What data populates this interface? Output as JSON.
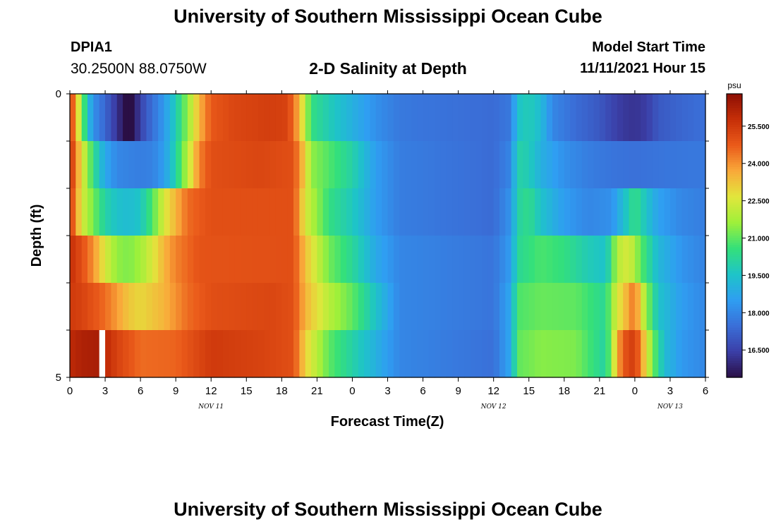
{
  "header": {
    "title": "University of Southern Mississippi Ocean Cube",
    "station_id": "DPIA1",
    "station_coords": "30.2500N  88.0750W",
    "chart_title": "2-D Salinity at Depth",
    "model_start_label": "Model Start Time",
    "model_start_value": "11/11/2021 Hour 15"
  },
  "footer": {
    "title": "University of Southern Mississippi Ocean Cube"
  },
  "chart_data": {
    "type": "heatmap",
    "title": "2-D Salinity at Depth",
    "xlabel": "Forecast Time(Z)",
    "ylabel": "Depth (ft)",
    "x_hours_range": [
      0,
      54
    ],
    "x_ticks": [
      "0",
      "3",
      "6",
      "9",
      "12",
      "15",
      "18",
      "21",
      "0",
      "3",
      "6",
      "9",
      "12",
      "15",
      "18",
      "21",
      "0",
      "3",
      "6"
    ],
    "day_labels": [
      "NOV 11",
      "NOV 12",
      "NOV 13"
    ],
    "y_ticks": [
      "0",
      "5"
    ],
    "ylim": [
      0,
      5
    ],
    "colorbar_unit": "psu",
    "colorbar_ticks": [
      "25.500",
      "24.000",
      "22.500",
      "21.000",
      "19.500",
      "18.000",
      "16.500"
    ],
    "colorbar_range": [
      15.4,
      26.8
    ],
    "colors": [
      "#2a0f45",
      "#3b3fa8",
      "#3a6fd8",
      "#2f9ef2",
      "#1ec4c8",
      "#34e07a",
      "#9ef03a",
      "#e2e63c",
      "#f9a93a",
      "#ea5a1a",
      "#c62f08",
      "#8c0f04"
    ],
    "layers": [
      {
        "depth": 0,
        "knots": [
          [
            0,
            25.8
          ],
          [
            0.5,
            23.5
          ],
          [
            1,
            21.6
          ],
          [
            1.5,
            19.5
          ],
          [
            2,
            18.2
          ],
          [
            3,
            17.3
          ],
          [
            4,
            16.2
          ],
          [
            4.8,
            15.3
          ],
          [
            5.3,
            15.3
          ],
          [
            6,
            16.5
          ],
          [
            7,
            17.5
          ],
          [
            8,
            18.4
          ],
          [
            9,
            19.8
          ],
          [
            10,
            21.5
          ],
          [
            11,
            23.5
          ],
          [
            12,
            24.8
          ],
          [
            14,
            25.2
          ],
          [
            17,
            25.4
          ],
          [
            18.5,
            25.3
          ],
          [
            19.5,
            23.5
          ],
          [
            20,
            22.0
          ],
          [
            20.5,
            20.5
          ],
          [
            22,
            19.8
          ],
          [
            24,
            19.0
          ],
          [
            26,
            18.2
          ],
          [
            28,
            17.7
          ],
          [
            30,
            17.6
          ],
          [
            36,
            17.4
          ],
          [
            37.5,
            17.7
          ],
          [
            38,
            19.5
          ],
          [
            39,
            19.8
          ],
          [
            40,
            19.3
          ],
          [
            41,
            18.0
          ],
          [
            43,
            17.4
          ],
          [
            45,
            17.0
          ],
          [
            46,
            16.6
          ],
          [
            47,
            16.3
          ],
          [
            48,
            16.2
          ],
          [
            49,
            16.4
          ],
          [
            50,
            17.0
          ],
          [
            52,
            17.3
          ],
          [
            54,
            17.5
          ]
        ]
      },
      {
        "depth": 1,
        "knots": [
          [
            0,
            26.0
          ],
          [
            0.5,
            24.2
          ],
          [
            1,
            22.8
          ],
          [
            1.5,
            21.5
          ],
          [
            2,
            20.5
          ],
          [
            2.5,
            19.5
          ],
          [
            3,
            18.8
          ],
          [
            4,
            18.0
          ],
          [
            6,
            17.8
          ],
          [
            7,
            17.9
          ],
          [
            8,
            18.5
          ],
          [
            9,
            20.0
          ],
          [
            10,
            22.0
          ],
          [
            11,
            24.2
          ],
          [
            12,
            25.0
          ],
          [
            16,
            25.2
          ],
          [
            19,
            25.0
          ],
          [
            20,
            23.0
          ],
          [
            20.5,
            21.5
          ],
          [
            24,
            20.0
          ],
          [
            26,
            18.5
          ],
          [
            28,
            17.8
          ],
          [
            34,
            17.5
          ],
          [
            36,
            17.4
          ],
          [
            37.5,
            18.0
          ],
          [
            38,
            20.0
          ],
          [
            39,
            19.8
          ],
          [
            40,
            19.0
          ],
          [
            42,
            18.2
          ],
          [
            44,
            17.8
          ],
          [
            46,
            17.6
          ],
          [
            48,
            17.5
          ],
          [
            50,
            17.6
          ],
          [
            54,
            17.7
          ]
        ]
      },
      {
        "depth": 2,
        "knots": [
          [
            0,
            25.6
          ],
          [
            0.5,
            24.0
          ],
          [
            1,
            22.5
          ],
          [
            2,
            21.2
          ],
          [
            3,
            20.0
          ],
          [
            4,
            19.5
          ],
          [
            5,
            19.3
          ],
          [
            6,
            19.6
          ],
          [
            7,
            20.8
          ],
          [
            8,
            22.5
          ],
          [
            9,
            23.5
          ],
          [
            10,
            24.5
          ],
          [
            12,
            25.0
          ],
          [
            19,
            25.0
          ],
          [
            20,
            22.5
          ],
          [
            22,
            20.5
          ],
          [
            24,
            19.7
          ],
          [
            26,
            18.5
          ],
          [
            28,
            17.8
          ],
          [
            36,
            17.4
          ],
          [
            37.5,
            18.3
          ],
          [
            38,
            20.0
          ],
          [
            39,
            20.4
          ],
          [
            40,
            19.5
          ],
          [
            42,
            18.5
          ],
          [
            44,
            18.0
          ],
          [
            46,
            18.2
          ],
          [
            47,
            19.3
          ],
          [
            48,
            20.5
          ],
          [
            49,
            19.5
          ],
          [
            50,
            18.6
          ],
          [
            52,
            18.0
          ],
          [
            54,
            17.8
          ]
        ]
      },
      {
        "depth": 3,
        "knots": [
          [
            0,
            25.8
          ],
          [
            1,
            25.0
          ],
          [
            2,
            24.0
          ],
          [
            3,
            22.5
          ],
          [
            4,
            21.5
          ],
          [
            5,
            21.3
          ],
          [
            6,
            21.7
          ],
          [
            7,
            22.5
          ],
          [
            8,
            23.5
          ],
          [
            9,
            24.2
          ],
          [
            11,
            24.9
          ],
          [
            19,
            25.0
          ],
          [
            20,
            23.3
          ],
          [
            22,
            21.2
          ],
          [
            24,
            20.2
          ],
          [
            26,
            18.8
          ],
          [
            28,
            18.0
          ],
          [
            36,
            17.6
          ],
          [
            37.5,
            18.5
          ],
          [
            38,
            20.2
          ],
          [
            40,
            20.8
          ],
          [
            42,
            20.5
          ],
          [
            44,
            19.8
          ],
          [
            45.5,
            19.5
          ],
          [
            46,
            20.5
          ],
          [
            46.5,
            22.0
          ],
          [
            47.5,
            22.5
          ],
          [
            48.5,
            21.0
          ],
          [
            50,
            19.2
          ],
          [
            52,
            18.3
          ],
          [
            54,
            17.9
          ]
        ]
      },
      {
        "depth": 4,
        "knots": [
          [
            0,
            25.5
          ],
          [
            1,
            25.3
          ],
          [
            3,
            24.5
          ],
          [
            5,
            23.2
          ],
          [
            6,
            22.9
          ],
          [
            8,
            23.5
          ],
          [
            10,
            24.5
          ],
          [
            12,
            25.0
          ],
          [
            17,
            25.2
          ],
          [
            19,
            25.0
          ],
          [
            20,
            23.5
          ],
          [
            22,
            22.0
          ],
          [
            24,
            21.0
          ],
          [
            26,
            19.5
          ],
          [
            28,
            18.0
          ],
          [
            36,
            17.6
          ],
          [
            37.5,
            18.8
          ],
          [
            38,
            20.8
          ],
          [
            40,
            21.1
          ],
          [
            43,
            21.0
          ],
          [
            45.5,
            20.2
          ],
          [
            46,
            21.5
          ],
          [
            46.5,
            22.5
          ],
          [
            47.3,
            23.5
          ],
          [
            48,
            24.5
          ],
          [
            48.5,
            22.8
          ],
          [
            49,
            21.5
          ],
          [
            50,
            19.5
          ],
          [
            52,
            18.5
          ],
          [
            54,
            18.0
          ]
        ]
      },
      {
        "depth": 5,
        "knots": [
          [
            0,
            25.9
          ],
          [
            1,
            26.2
          ],
          [
            2.5,
            26.3
          ],
          [
            4,
            25.3
          ],
          [
            6,
            24.5
          ],
          [
            9,
            24.6
          ],
          [
            12,
            25.5
          ],
          [
            16,
            25.3
          ],
          [
            19,
            25.0
          ],
          [
            20,
            23.0
          ],
          [
            22,
            21.0
          ],
          [
            24,
            20.0
          ],
          [
            26,
            19.0
          ],
          [
            28,
            18.0
          ],
          [
            36,
            17.5
          ],
          [
            37.5,
            18.8
          ],
          [
            38,
            21.0
          ],
          [
            40,
            21.4
          ],
          [
            43,
            21.3
          ],
          [
            45.5,
            20.0
          ],
          [
            46,
            21.5
          ],
          [
            46.5,
            23.5
          ],
          [
            47,
            24.8
          ],
          [
            48,
            25.5
          ],
          [
            48.7,
            23.5
          ],
          [
            49.5,
            21.3
          ],
          [
            50.5,
            19.3
          ],
          [
            52,
            18.4
          ],
          [
            54,
            18.0
          ]
        ]
      }
    ],
    "missing_cells": [
      {
        "depth": 5,
        "hour": 2.5
      }
    ]
  }
}
